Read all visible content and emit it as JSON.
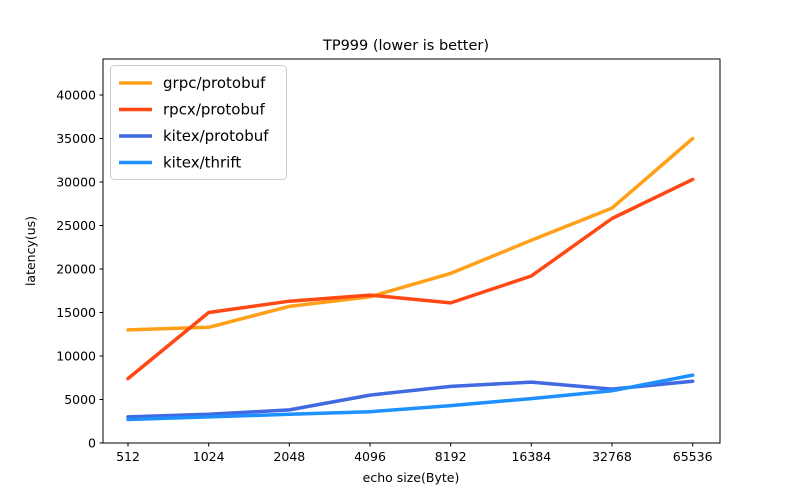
{
  "chart_data": {
    "type": "line",
    "title": "TP999 (lower is better)",
    "xlabel": "echo size(Byte)",
    "ylabel": "latency(us)",
    "categories": [
      "512",
      "1024",
      "2048",
      "4096",
      "8192",
      "16384",
      "32768",
      "65536"
    ],
    "y_ticks": [
      0,
      5000,
      10000,
      15000,
      20000,
      25000,
      30000,
      35000,
      40000
    ],
    "ylim": [
      0,
      44100
    ],
    "grid": false,
    "legend_position": "upper-left",
    "series": [
      {
        "name": "grpc/protobuf",
        "color": "#ffa018",
        "values": [
          13000,
          13300,
          15700,
          16800,
          19500,
          23300,
          27000,
          35000
        ]
      },
      {
        "name": "rpcx/protobuf",
        "color": "#ff4814",
        "values": [
          7400,
          15000,
          16300,
          17000,
          16100,
          19200,
          25800,
          30300
        ]
      },
      {
        "name": "kitex/protobuf",
        "color": "#4169e1",
        "values": [
          3000,
          3300,
          3800,
          5500,
          6500,
          7000,
          6200,
          7100
        ]
      },
      {
        "name": "kitex/thrift",
        "color": "#1e90ff",
        "values": [
          2700,
          3000,
          3300,
          3600,
          4300,
          5100,
          6000,
          7800
        ]
      }
    ]
  }
}
